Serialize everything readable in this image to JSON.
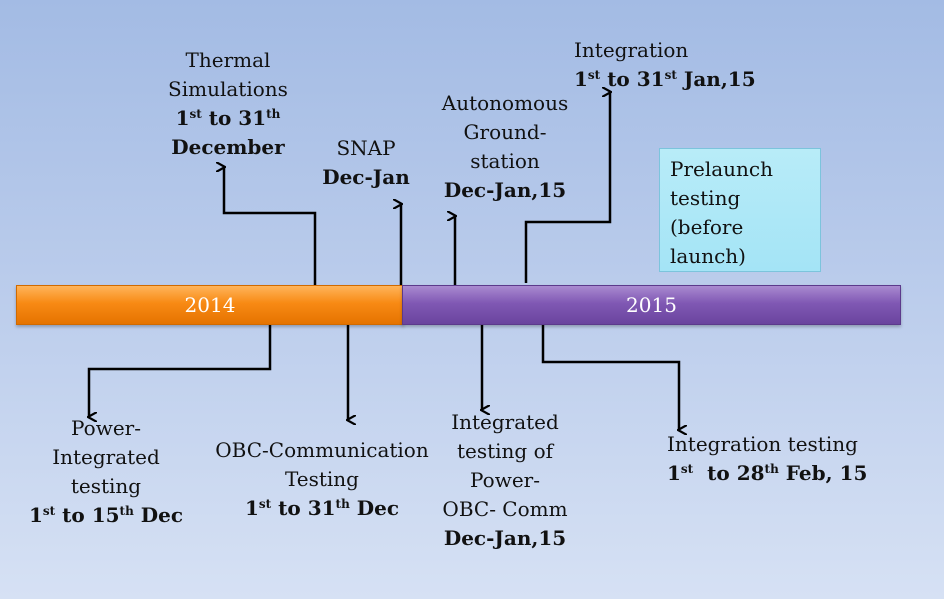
{
  "timeline": {
    "year_2014": "2014",
    "year_2015": "2015"
  },
  "milestones": {
    "thermal": {
      "line1": "Thermal",
      "line2": "Simulations",
      "date_a": "1",
      "date_a_sup": "st",
      "date_b": " to 31",
      "date_b_sup": "th",
      "date_line2": "December"
    },
    "snap": {
      "line1": "SNAP",
      "date": "Dec-Jan"
    },
    "ground": {
      "line1": "Autonomous",
      "line2": "Ground-",
      "line3": "station",
      "date": "Dec-Jan,15"
    },
    "integration": {
      "line1": "Integration",
      "date_a": "1",
      "date_a_sup": "st",
      "date_b": " to 31",
      "date_b_sup": "st",
      "date_c": " Jan,15"
    },
    "prelaunch": {
      "line1": "Prelaunch",
      "line2": "testing",
      "line3": "(before",
      "line4": "launch)"
    },
    "power": {
      "line1": "Power-",
      "line2": "Integrated",
      "line3": "testing",
      "date_a": "1",
      "date_a_sup": "st",
      "date_b": " to 15",
      "date_b_sup": "th",
      "date_c": " Dec"
    },
    "obc": {
      "line1": "OBC-Communication",
      "line2": "Testing",
      "date_a": "1",
      "date_a_sup": "st",
      "date_b": " to 31",
      "date_b_sup": "th",
      "date_c": " Dec"
    },
    "integrated_power_obc": {
      "line1": "Integrated",
      "line2": "testing of",
      "line3": "Power-",
      "line4": "OBC- Comm",
      "date": "Dec-Jan,15"
    },
    "integration_testing": {
      "line1": "Integration testing",
      "date_a": "1",
      "date_a_sup": "st",
      "date_b": "  to 28",
      "date_b_sup": "th",
      "date_c": " Feb, 15"
    }
  },
  "colors": {
    "bar_2014": "#f88a14",
    "bar_2015": "#8058b4",
    "prelaunch_box": "#a4e4f6"
  }
}
